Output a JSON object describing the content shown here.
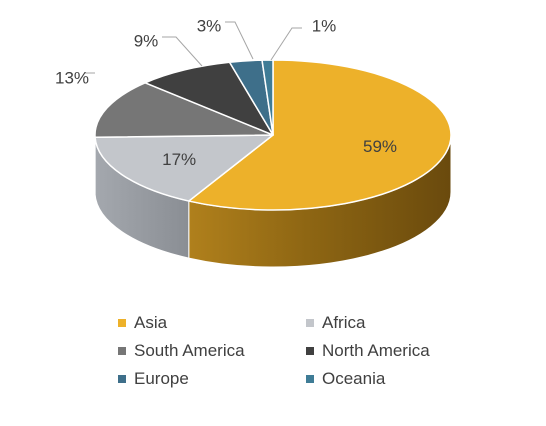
{
  "chart_data": {
    "type": "pie",
    "title": "",
    "categories": [
      "Asia",
      "Africa",
      "South America",
      "North America",
      "Europe",
      "Oceania"
    ],
    "values": [
      59,
      17,
      13,
      9,
      3,
      1
    ],
    "data_labels": [
      "59%",
      "17%",
      "13%",
      "9%",
      "3%",
      "1%"
    ],
    "colors": [
      "#EDB12A",
      "#C3C6CB",
      "#767676",
      "#404040",
      "#3E6F8A",
      "#3F7C96"
    ],
    "legend": {
      "position": "bottom",
      "items": [
        {
          "label": "Asia",
          "color": "#EDB12A"
        },
        {
          "label": "Africa",
          "color": "#C3C6CB"
        },
        {
          "label": "South America",
          "color": "#767676"
        },
        {
          "label": "North America",
          "color": "#404040"
        },
        {
          "label": "Europe",
          "color": "#3E6F8A"
        },
        {
          "label": "Oceania",
          "color": "#3F7C96"
        }
      ]
    },
    "style": "3d"
  }
}
